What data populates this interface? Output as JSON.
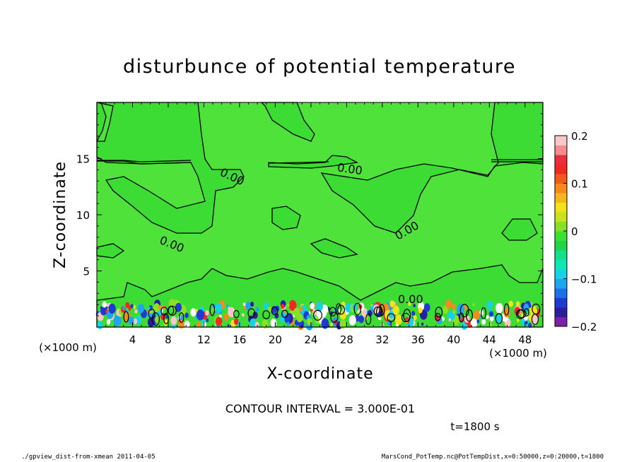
{
  "chart_data": {
    "type": "heatmap",
    "title": "disturbunce of potential temperature",
    "xlabel": "X-coordinate",
    "ylabel": "Z-coordinate",
    "x_unit": "(×1000 m)",
    "y_unit": "(×1000 m)",
    "xlim": [
      0,
      50
    ],
    "ylim": [
      0,
      20
    ],
    "x_ticks": [
      4,
      8,
      12,
      16,
      20,
      24,
      28,
      32,
      36,
      40,
      44,
      48
    ],
    "y_ticks": [
      5,
      10,
      15
    ],
    "colorbar": {
      "min": -0.2,
      "max": 0.2,
      "tick_values": [
        0.2,
        0.1,
        0,
        -0.1,
        -0.2
      ],
      "tick_labels": [
        "0.2",
        "0.1",
        "0",
        "−0.1",
        "−0.2"
      ],
      "colors": [
        "#7d1fa8",
        "#2a1e9e",
        "#1f3ad1",
        "#1f6fe6",
        "#1fa5f0",
        "#16d2e6",
        "#12e6b4",
        "#12e08a",
        "#22d44a",
        "#3be034",
        "#8ae026",
        "#c8e31e",
        "#f0e21c",
        "#f5b81a",
        "#f78a1c",
        "#f25a1c",
        "#ef2a22",
        "#e6303c",
        "#f28d8d",
        "#f8c8c8"
      ]
    },
    "contour_labels": [
      "0.00",
      "0.00",
      "0.00",
      "0.00",
      "0.00"
    ],
    "contour_interval_text": "CONTOUR INTERVAL = 3.000E-01",
    "time_text": "t=1800 s"
  },
  "footer": {
    "left": "./gpview_dist-from-xmean  2011-04-05",
    "right": "MarsCond_PotTemp.nc@PotTempDist,x=0:50000,z=0:20000,t=1800"
  }
}
